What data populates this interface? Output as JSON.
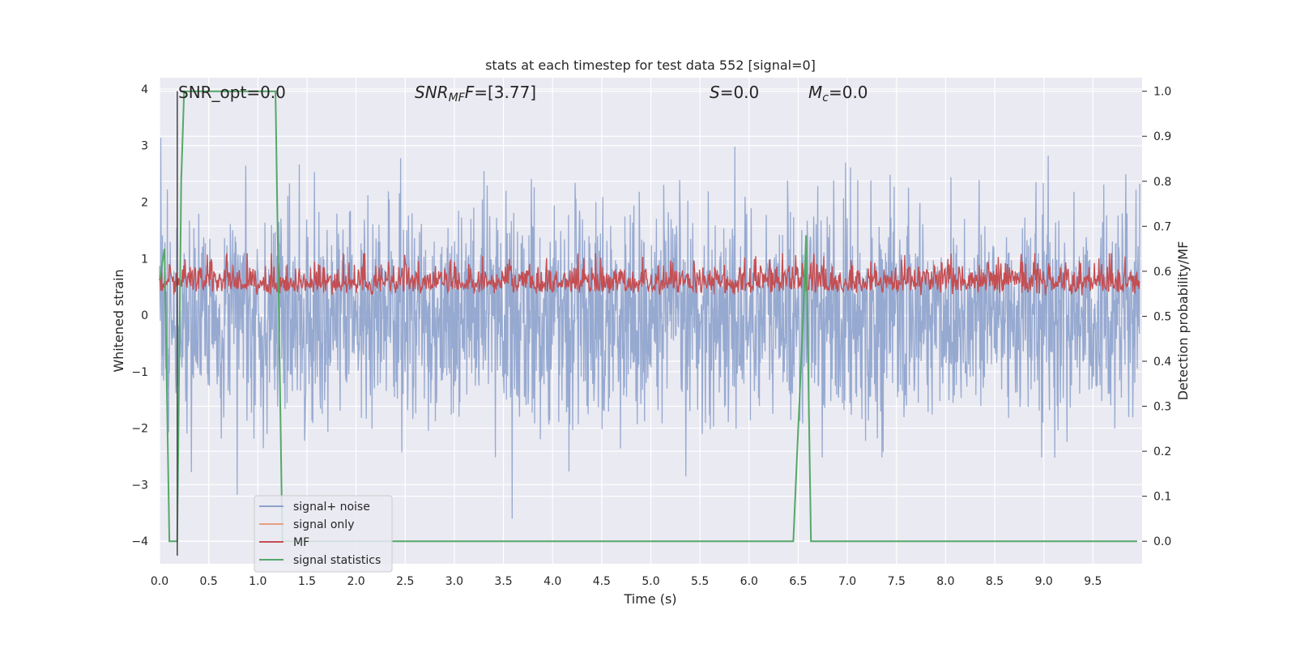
{
  "chart_data": {
    "type": "line",
    "title": "stats at each timestep for test data 552 [signal=0]",
    "xlabel": "Time (s)",
    "ylabel_left": "Whitened strain",
    "ylabel_right": "Detection probability/MF",
    "xlim": [
      0.0,
      10.0
    ],
    "ylim_left": [
      -4.4,
      4.2
    ],
    "ylim_right": [
      -0.05,
      1.03
    ],
    "x_ticks": [
      "0.0",
      "0.5",
      "1.0",
      "1.5",
      "2.0",
      "2.5",
      "3.0",
      "3.5",
      "4.0",
      "4.5",
      "5.0",
      "5.5",
      "6.0",
      "6.5",
      "7.0",
      "7.5",
      "8.0",
      "8.5",
      "9.0",
      "9.5"
    ],
    "y_left_ticks": [
      "4",
      "3",
      "2",
      "1",
      "0",
      "−1",
      "−2",
      "−3",
      "−4"
    ],
    "y_right_ticks": [
      "1.0",
      "0.9",
      "0.8",
      "0.7",
      "0.6",
      "0.5",
      "0.4",
      "0.3",
      "0.2",
      "0.1",
      "0.0"
    ],
    "grid": true,
    "legend_position": "lower-left",
    "annotations": {
      "snr_opt": "SNR_opt=0.0",
      "snr_mf_prefix": "SNR",
      "snr_mf_sub": "MF",
      "snr_mf_value": "=[3.77]",
      "s_label": "S",
      "s_value": "=0.0",
      "mc_label": "M",
      "mc_sub": "c",
      "mc_value": "=0.0"
    },
    "series": [
      {
        "name": "signal+ noise",
        "color": "#8da2cc",
        "axis": "left",
        "description_amplitude": [
          -3.3,
          3.4
        ]
      },
      {
        "name": "signal only",
        "color": "#e8a07f",
        "axis": "left",
        "values": []
      },
      {
        "name": "MF",
        "color": "#c44e52",
        "axis": "right",
        "range": [
          0.52,
          0.64
        ]
      },
      {
        "name": "signal statistics",
        "color": "#55a868",
        "axis": "right",
        "x": [
          0.0,
          0.05,
          0.1,
          0.12,
          0.18,
          0.22,
          0.25,
          1.18,
          1.25,
          1.3,
          6.45,
          6.55,
          6.58,
          6.63,
          6.7,
          8.8,
          9.95
        ],
        "values": [
          0.58,
          0.65,
          0.0,
          0.0,
          0.0,
          0.8,
          1.0,
          1.0,
          0.0,
          0.0,
          0.0,
          0.5,
          0.68,
          0.0,
          0.0,
          0.0,
          0.0
        ]
      }
    ],
    "vertical_marker_x": 0.18
  }
}
